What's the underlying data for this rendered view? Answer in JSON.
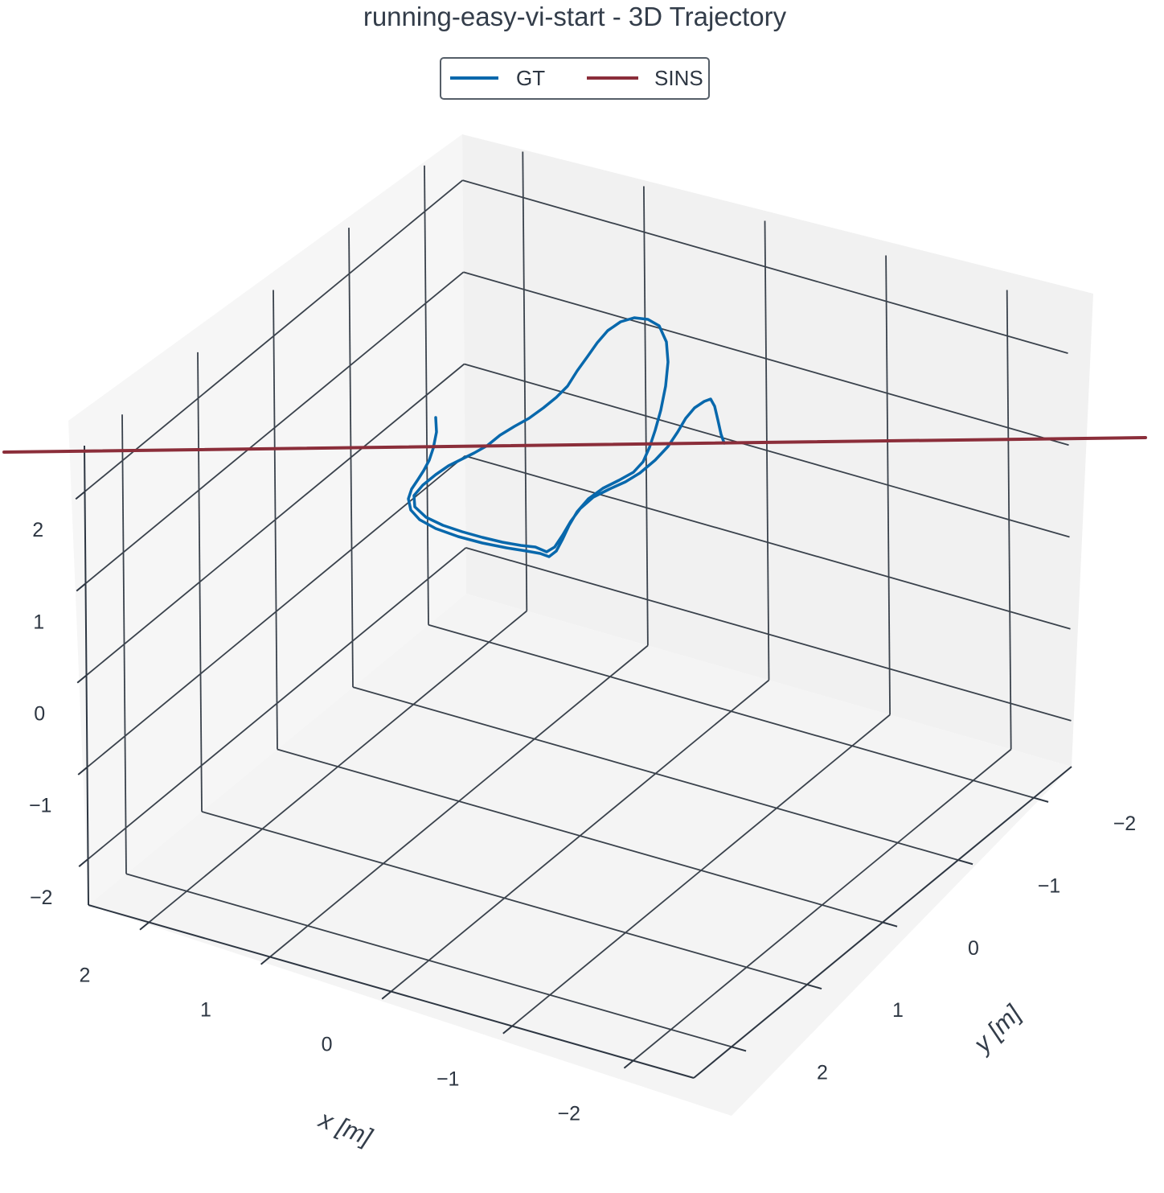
{
  "chart_data": {
    "type": "line",
    "projection": "3d",
    "title": "running-easy-vi-start - 3D Trajectory",
    "xlabel": "x [m]",
    "ylabel": "y [m]",
    "zlabel": "",
    "xlim": [
      -2.5,
      2.5
    ],
    "ylim": [
      -2.5,
      2.5
    ],
    "zlim": [
      -2.5,
      2.5
    ],
    "x_ticks": [
      -2,
      -1,
      0,
      1,
      2
    ],
    "y_ticks": [
      -2,
      -1,
      0,
      1,
      2
    ],
    "z_ticks": [
      -2,
      -1,
      0,
      1,
      2
    ],
    "tick_labels": {
      "x": [
        "−2",
        "−1",
        "0",
        "1",
        "2"
      ],
      "y": [
        "−2",
        "−1",
        "0",
        "1",
        "2"
      ],
      "z": [
        "−2",
        "−1",
        "0",
        "1",
        "2"
      ]
    },
    "grid": true,
    "legend": {
      "placement": "top-center",
      "entries": [
        "GT",
        "SINS"
      ]
    },
    "series": [
      {
        "name": "GT",
        "color": "#0868ac",
        "screen_path": [
          [
            542,
            519
          ],
          [
            543,
            537
          ],
          [
            539,
            557
          ],
          [
            534,
            572
          ],
          [
            527,
            585
          ],
          [
            520,
            596
          ],
          [
            512,
            608
          ],
          [
            508,
            620
          ],
          [
            511,
            634
          ],
          [
            522,
            646
          ],
          [
            542,
            657
          ],
          [
            570,
            667
          ],
          [
            600,
            675
          ],
          [
            630,
            681
          ],
          [
            655,
            685
          ],
          [
            672,
            688
          ],
          [
            683,
            692
          ],
          [
            692,
            685
          ],
          [
            700,
            670
          ],
          [
            708,
            653
          ],
          [
            718,
            636
          ],
          [
            732,
            620
          ],
          [
            750,
            607
          ],
          [
            770,
            597
          ],
          [
            788,
            587
          ],
          [
            800,
            574
          ],
          [
            808,
            556
          ],
          [
            815,
            535
          ],
          [
            822,
            510
          ],
          [
            828,
            480
          ],
          [
            831,
            450
          ],
          [
            829,
            425
          ],
          [
            820,
            405
          ],
          [
            806,
            397
          ],
          [
            789,
            395
          ],
          [
            772,
            400
          ],
          [
            756,
            411
          ],
          [
            743,
            426
          ],
          [
            731,
            443
          ],
          [
            718,
            461
          ],
          [
            706,
            480
          ],
          [
            692,
            494
          ],
          [
            676,
            507
          ],
          [
            658,
            520
          ],
          [
            640,
            530
          ],
          [
            622,
            541
          ],
          [
            606,
            554
          ],
          [
            590,
            563
          ],
          [
            574,
            571
          ],
          [
            558,
            579
          ],
          [
            542,
            590
          ],
          [
            526,
            603
          ],
          [
            515,
            616
          ],
          [
            516,
            630
          ],
          [
            530,
            643
          ],
          [
            551,
            653
          ],
          [
            575,
            661
          ],
          [
            600,
            668
          ],
          [
            625,
            674
          ],
          [
            648,
            678
          ],
          [
            666,
            680
          ],
          [
            680,
            686
          ],
          [
            690,
            680
          ],
          [
            700,
            665
          ],
          [
            710,
            648
          ],
          [
            722,
            632
          ],
          [
            738,
            618
          ],
          [
            758,
            608
          ],
          [
            778,
            599
          ],
          [
            796,
            588
          ],
          [
            815,
            572
          ],
          [
            831,
            555
          ],
          [
            843,
            537
          ],
          [
            853,
            520
          ],
          [
            864,
            507
          ],
          [
            876,
            499
          ],
          [
            884,
            496
          ],
          [
            889,
            505
          ],
          [
            893,
            522
          ],
          [
            897,
            540
          ],
          [
            901,
            551
          ]
        ]
      },
      {
        "name": "SINS",
        "color": "#8b2e3a",
        "screen_path": [
          [
            5,
            562
          ],
          [
            1425,
            544
          ]
        ]
      }
    ]
  }
}
